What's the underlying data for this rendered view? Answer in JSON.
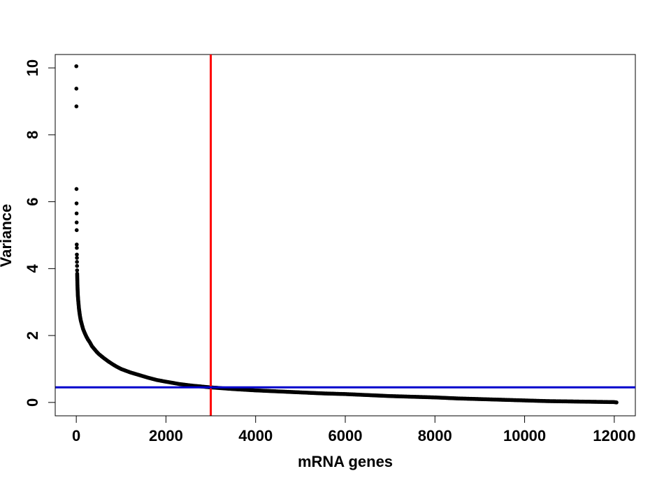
{
  "chart_data": {
    "type": "scatter",
    "title": "",
    "xlabel": "mRNA genes",
    "ylabel": "Variance",
    "xlim": [
      -470,
      12470
    ],
    "ylim": [
      -0.4,
      10.4
    ],
    "x_ticks": [
      "0",
      "2000",
      "4000",
      "6000",
      "8000",
      "10000",
      "12000"
    ],
    "y_ticks": [
      "0",
      "2",
      "4",
      "6",
      "8",
      "10"
    ],
    "grid": false,
    "legend": "none",
    "series": [
      {
        "x": [
          1,
          2,
          3,
          5,
          6,
          7,
          8,
          9,
          10,
          12,
          13,
          14,
          15,
          17,
          18,
          20,
          22,
          25,
          30,
          35,
          40,
          50,
          60,
          70,
          80,
          100,
          120,
          150,
          180,
          220,
          260,
          300,
          350,
          400,
          450,
          500,
          600,
          700,
          800,
          900,
          1000,
          1200,
          1400,
          1600,
          1800,
          2000,
          2300,
          2600,
          3000,
          3500,
          4000,
          4500,
          5000,
          5500,
          6000,
          6500,
          7000,
          7500,
          8000,
          8500,
          9000,
          9500,
          10000,
          10500,
          11000,
          11500,
          12000,
          12050
        ],
        "y": [
          10.05,
          9.38,
          8.85,
          6.38,
          5.95,
          5.65,
          5.38,
          5.15,
          4.72,
          4.62,
          4.42,
          4.32,
          4.2,
          4.08,
          3.95,
          3.85,
          3.7,
          3.55,
          3.35,
          3.2,
          3.1,
          2.95,
          2.8,
          2.7,
          2.6,
          2.45,
          2.35,
          2.2,
          2.1,
          1.98,
          1.88,
          1.8,
          1.68,
          1.6,
          1.52,
          1.45,
          1.34,
          1.24,
          1.15,
          1.07,
          1.0,
          0.9,
          0.82,
          0.74,
          0.67,
          0.62,
          0.55,
          0.5,
          0.45,
          0.4,
          0.36,
          0.33,
          0.3,
          0.27,
          0.25,
          0.22,
          0.19,
          0.17,
          0.15,
          0.12,
          0.1,
          0.08,
          0.06,
          0.04,
          0.03,
          0.02,
          0.01,
          0.0
        ]
      }
    ],
    "reference_lines": [
      {
        "orientation": "vertical",
        "value": 3000,
        "color": "#ff0000"
      },
      {
        "orientation": "horizontal",
        "value": 0.45,
        "color": "#0000cc"
      }
    ],
    "colors": {
      "points": "#000000",
      "frame": "#000000"
    }
  }
}
